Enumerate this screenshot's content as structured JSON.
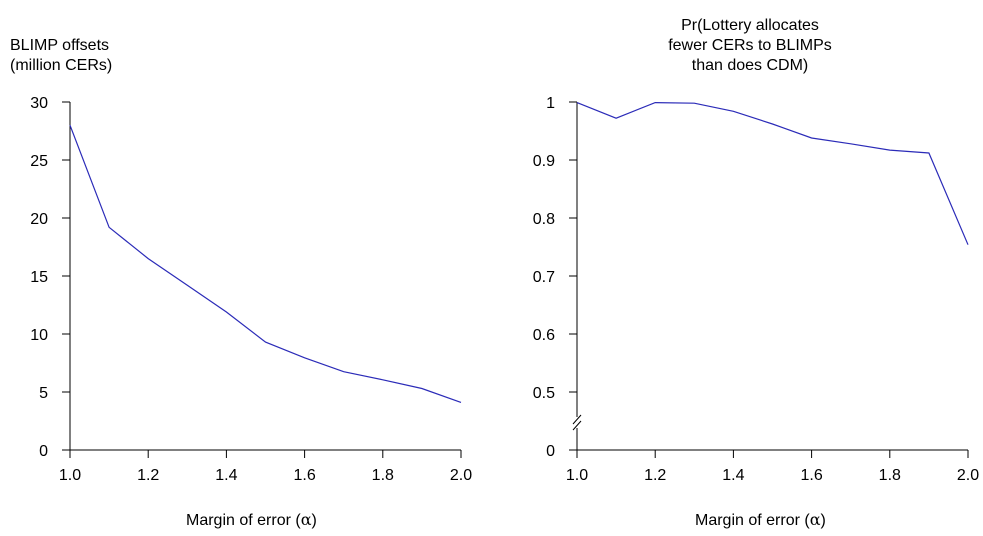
{
  "chart_data": [
    {
      "type": "line",
      "ylabel": "BLIMP offsets\n(million CERs)",
      "xlabel_prefix": "Margin of error (",
      "xlabel_symbol": "α",
      "xlabel_suffix": ")",
      "xlim": [
        1.0,
        2.0
      ],
      "ylim": [
        0,
        30
      ],
      "xticks": [
        "1.0",
        "1.2",
        "1.4",
        "1.6",
        "1.8",
        "2.0"
      ],
      "yticks": [
        "0",
        "5",
        "10",
        "15",
        "20",
        "25",
        "30"
      ],
      "color": "#2b2bb8",
      "series": [
        {
          "x": [
            1.0,
            1.1,
            1.2,
            1.3,
            1.4,
            1.5,
            1.6,
            1.7,
            1.8,
            1.9,
            2.0
          ],
          "y": [
            28.0,
            19.2,
            16.5,
            14.2,
            11.9,
            9.3,
            7.95,
            6.75,
            6.05,
            5.3,
            4.1
          ]
        }
      ]
    },
    {
      "type": "line",
      "ylabel": "Pr(Lottery allocates\nfewer CERs to BLIMPs\nthan does CDM)",
      "xlabel_prefix": "Margin of error (",
      "xlabel_symbol": "α",
      "xlabel_suffix": ")",
      "xlim": [
        1.0,
        2.0
      ],
      "ylim": [
        0.4,
        1.0
      ],
      "axis_break": true,
      "xticks": [
        "1.0",
        "1.2",
        "1.4",
        "1.6",
        "1.8",
        "2.0"
      ],
      "yticks": [
        "0",
        "0.5",
        "0.6",
        "0.7",
        "0.8",
        "0.9",
        "1"
      ],
      "color": "#2b2bb8",
      "series": [
        {
          "x": [
            1.0,
            1.1,
            1.2,
            1.3,
            1.4,
            1.5,
            1.6,
            1.7,
            1.8,
            1.9,
            2.0
          ],
          "y": [
            0.999,
            0.972,
            0.999,
            0.998,
            0.984,
            0.962,
            0.938,
            0.928,
            0.917,
            0.912,
            0.754
          ]
        }
      ]
    }
  ]
}
